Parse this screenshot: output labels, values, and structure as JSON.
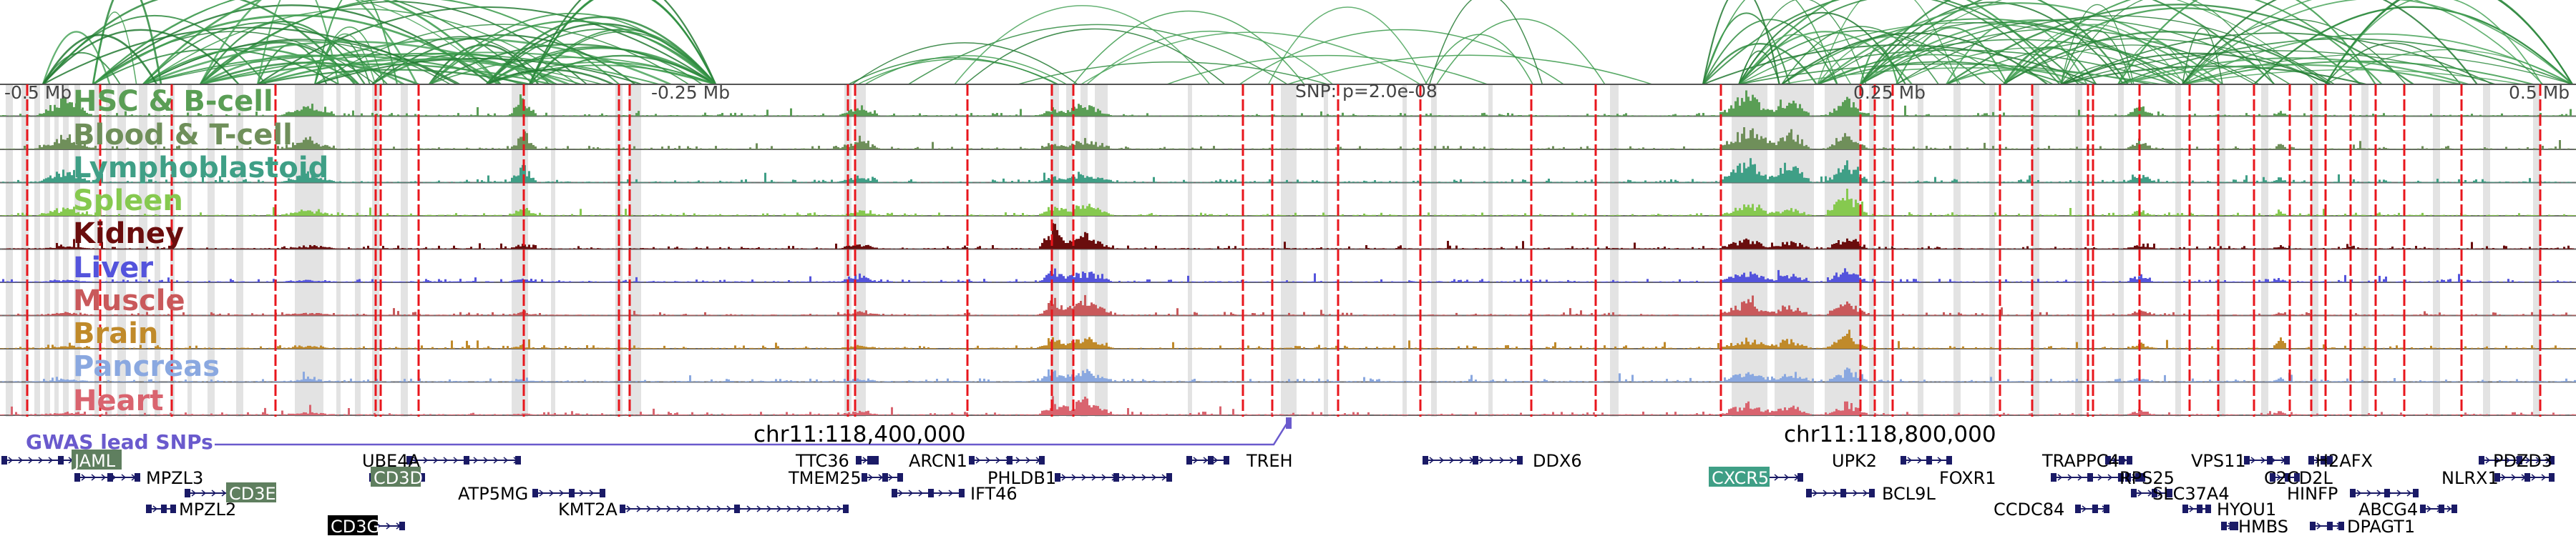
{
  "axis": {
    "left_label": "-0.5 Mb",
    "mid_left_label": "-0.25 Mb",
    "center_label": "SNP: p=2.0e-08",
    "mid_right_label": "0.25 Mb",
    "right_label": "0.5 Mb"
  },
  "tracks": [
    {
      "name": "HSC & B-cell",
      "color": "#5a9e55"
    },
    {
      "name": "Blood & T-cell",
      "color": "#6f8f5a"
    },
    {
      "name": "Lymphoblastoid",
      "color": "#3f9f86"
    },
    {
      "name": "Spleen",
      "color": "#86c94f"
    },
    {
      "name": "Kidney",
      "color": "#6a0d0d"
    },
    {
      "name": "Liver",
      "color": "#5454dc"
    },
    {
      "name": "Muscle",
      "color": "#c9595b"
    },
    {
      "name": "Brain",
      "color": "#c08a2a"
    },
    {
      "name": "Pancreas",
      "color": "#8aa8e0"
    },
    {
      "name": "Heart",
      "color": "#d9646f"
    }
  ],
  "gwas": {
    "label": "GWAS lead SNPs",
    "color": "#6a5acd"
  },
  "coordinates": {
    "left": "chr11:118,400,000",
    "right": "chr11:118,800,000"
  },
  "genes": [
    {
      "name": "JAML"
    },
    {
      "name": "MPZL3"
    },
    {
      "name": "CD3E"
    },
    {
      "name": "MPZL2"
    },
    {
      "name": "CD3G"
    },
    {
      "name": "UBE4A"
    },
    {
      "name": "CD3D"
    },
    {
      "name": "ATP5MG"
    },
    {
      "name": "KMT2A"
    },
    {
      "name": "TTC36"
    },
    {
      "name": "TMEM25"
    },
    {
      "name": "ARCN1"
    },
    {
      "name": "PHLDB1"
    },
    {
      "name": "IFT46"
    },
    {
      "name": "TREH"
    },
    {
      "name": "DDX6"
    },
    {
      "name": "CXCR5"
    },
    {
      "name": "UPK2"
    },
    {
      "name": "BCL9L"
    },
    {
      "name": "FOXR1"
    },
    {
      "name": "TRAPPC4"
    },
    {
      "name": "RPS25"
    },
    {
      "name": "SLC37A4"
    },
    {
      "name": "CCDC84"
    },
    {
      "name": "VPS11"
    },
    {
      "name": "HYOU1"
    },
    {
      "name": "HMBS"
    },
    {
      "name": "H2AFX"
    },
    {
      "name": "C2CD2L"
    },
    {
      "name": "DPAGT1"
    },
    {
      "name": "HINFP"
    },
    {
      "name": "ABCG4"
    },
    {
      "name": "PDZD3"
    },
    {
      "name": "NLRX1"
    }
  ],
  "colors": {
    "arc": "#2e8b3e",
    "red_line": "#e8161c",
    "highlight": "#dcdcdc",
    "gene": "#1a1a66",
    "axis_text": "#444444"
  }
}
